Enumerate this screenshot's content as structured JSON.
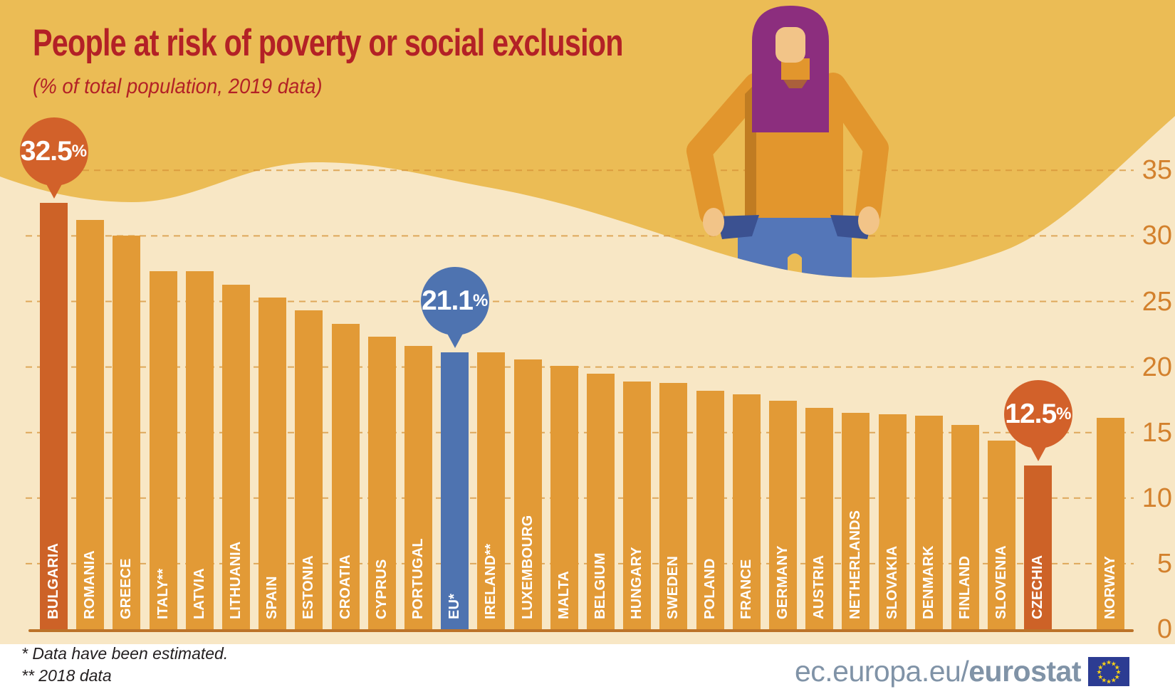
{
  "header": {
    "title": "People at risk of poverty or social exclusion",
    "subtitle": "(% of total population, 2019 data)"
  },
  "chart_data": {
    "type": "bar",
    "title": "People at risk of poverty or social exclusion",
    "subtitle": "(% of total population, 2019 data)",
    "ylabel": "% of total population",
    "ylim": [
      0,
      35
    ],
    "yticks": [
      35,
      30,
      25,
      20,
      15,
      10,
      5,
      0
    ],
    "grid": "horizontal-dashed",
    "legend": "none",
    "bars": [
      {
        "label": "BULGARIA",
        "value": 32.5,
        "style": "highlight-orange",
        "callout": {
          "num": "32.5",
          "suffix": "%",
          "color": "orange"
        }
      },
      {
        "label": "ROMANIA",
        "value": 31.2,
        "style": "normal"
      },
      {
        "label": "GREECE",
        "value": 30.0,
        "style": "normal"
      },
      {
        "label": "ITALY**",
        "value": 27.3,
        "style": "normal"
      },
      {
        "label": "LATVIA",
        "value": 27.3,
        "style": "normal"
      },
      {
        "label": "LITHUANIA",
        "value": 26.3,
        "style": "normal"
      },
      {
        "label": "SPAIN",
        "value": 25.3,
        "style": "normal"
      },
      {
        "label": "ESTONIA",
        "value": 24.3,
        "style": "normal"
      },
      {
        "label": "CROATIA",
        "value": 23.3,
        "style": "normal"
      },
      {
        "label": "CYPRUS",
        "value": 22.3,
        "style": "normal"
      },
      {
        "label": "PORTUGAL",
        "value": 21.6,
        "style": "normal"
      },
      {
        "label": "EU*",
        "value": 21.1,
        "style": "highlight-blue",
        "callout": {
          "num": "21.1",
          "suffix": "%",
          "color": "blue"
        }
      },
      {
        "label": "IRELAND**",
        "value": 21.1,
        "style": "normal"
      },
      {
        "label": "LUXEMBOURG",
        "value": 20.6,
        "style": "normal"
      },
      {
        "label": "MALTA",
        "value": 20.1,
        "style": "normal"
      },
      {
        "label": "BELGIUM",
        "value": 19.5,
        "style": "normal"
      },
      {
        "label": "HUNGARY",
        "value": 18.9,
        "style": "normal"
      },
      {
        "label": "SWEDEN",
        "value": 18.8,
        "style": "normal"
      },
      {
        "label": "POLAND",
        "value": 18.2,
        "style": "normal"
      },
      {
        "label": "FRANCE",
        "value": 17.9,
        "style": "normal"
      },
      {
        "label": "GERMANY",
        "value": 17.4,
        "style": "normal"
      },
      {
        "label": "AUSTRIA",
        "value": 16.9,
        "style": "normal"
      },
      {
        "label": "NETHERLANDS",
        "value": 16.5,
        "style": "normal"
      },
      {
        "label": "SLOVAKIA",
        "value": 16.4,
        "style": "normal"
      },
      {
        "label": "DENMARK",
        "value": 16.3,
        "style": "normal"
      },
      {
        "label": "FINLAND",
        "value": 15.6,
        "style": "normal"
      },
      {
        "label": "SLOVENIA",
        "value": 14.4,
        "style": "normal"
      },
      {
        "label": "CZECHIA",
        "value": 12.5,
        "style": "highlight-orange",
        "callout": {
          "num": "12.5",
          "suffix": "%",
          "color": "orange"
        }
      },
      {
        "label": "NORWAY",
        "value": 16.1,
        "style": "normal",
        "separated": true
      }
    ]
  },
  "notes": {
    "line1": "*  Data have been estimated.",
    "line2": "** 2018 data"
  },
  "footer": {
    "url_prefix": "ec.europa.eu/",
    "url_bold": "eurostat"
  },
  "colors": {
    "amber-bg": "#ebbc55",
    "cream-bg": "#f8e7c5",
    "white-band": "#ffffff",
    "bar": "#e29a36",
    "bar-highlight": "#cd6227",
    "bar-eu": "#4e73b0",
    "bubble-orange": "#d2612a",
    "bubble-blue": "#4e73b0",
    "title-red": "#b32126",
    "axis-label": "#d3812d",
    "gridline": "#d69338",
    "baseline": "#bc7329",
    "note-text": "#231f20",
    "logo-text": "#8093a7",
    "flag-blue": "#2c3c92",
    "star-yellow": "#f7d117",
    "hair": "#8c2e7e",
    "skin": "#f2c488",
    "sweater": "#e2962d",
    "sweater-shadow": "#b8761f",
    "jeans": "#5476b8",
    "pocket": "#3b5191"
  }
}
